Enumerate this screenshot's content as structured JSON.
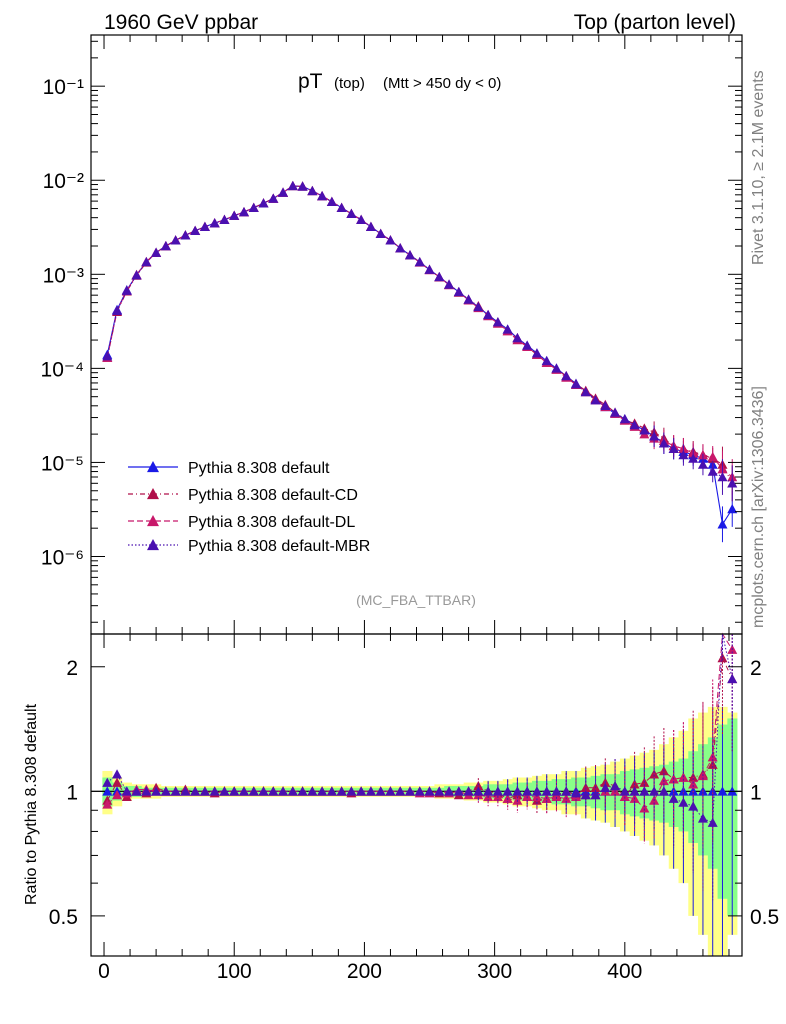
{
  "header": {
    "left": "1960 GeV ppbar",
    "right": "Top (parton level)"
  },
  "side_labels": {
    "rivet": "Rivet 3.1.10, ≥ 2.1M events",
    "mcplots": "mcplots.cern.ch [arXiv:1306.3436]"
  },
  "main_title": {
    "main": "pT",
    "sub1": "(top)",
    "sub2": "(Mtt > 450 dy < 0)"
  },
  "analysis_tag": "(MC_FBA_TTBAR)",
  "ratio_ylabel": "Ratio to Pythia 8.308 default",
  "colors": {
    "default": "#1a1ae6",
    "cd": "#b0104a",
    "dl": "#c8186a",
    "mbr": "#4a10b0",
    "band_yellow": "#ffff88",
    "band_green": "#88ff88"
  },
  "chart_data": [
    {
      "type": "line",
      "yscale": "log",
      "xlim": [
        -10,
        490
      ],
      "ylim": [
        1.5e-07,
        0.35
      ],
      "y_ticks": [
        {
          "v": 0.1,
          "label": "10⁻¹"
        },
        {
          "v": 0.01,
          "label": "10⁻²"
        },
        {
          "v": 0.001,
          "label": "10⁻³"
        },
        {
          "v": 0.0001,
          "label": "10⁻⁴"
        },
        {
          "v": 1e-05,
          "label": "10⁻⁵"
        },
        {
          "v": 1e-06,
          "label": "10⁻⁶"
        }
      ],
      "legend_position": "bottom-left",
      "x": [
        2.5,
        10,
        17.5,
        25,
        32.5,
        40,
        47.5,
        55,
        62.5,
        70,
        77.5,
        85,
        92.5,
        100,
        107.5,
        115,
        122.5,
        130,
        137.5,
        145,
        152.5,
        160,
        167.5,
        175,
        182.5,
        190,
        197.5,
        205,
        212.5,
        220,
        227.5,
        235,
        242.5,
        250,
        257.5,
        265,
        272.5,
        280,
        287.5,
        295,
        302.5,
        310,
        317.5,
        325,
        332.5,
        340,
        347.5,
        355,
        362.5,
        370,
        377.5,
        385,
        392.5,
        400,
        407.5,
        415,
        422.5,
        430,
        437.5,
        445,
        452.5,
        460,
        467.5,
        475,
        482.5
      ],
      "series": [
        {
          "name": "Pythia 8.308 default",
          "color_key": "default",
          "values": [
            0.00014,
            0.00042,
            0.00068,
            0.00098,
            0.00135,
            0.0017,
            0.002,
            0.0023,
            0.0026,
            0.0029,
            0.0032,
            0.0035,
            0.0038,
            0.0042,
            0.0046,
            0.0051,
            0.0057,
            0.0064,
            0.0074,
            0.0087,
            0.0086,
            0.0077,
            0.0068,
            0.0059,
            0.0051,
            0.0044,
            0.0038,
            0.0032,
            0.0027,
            0.0023,
            0.0019,
            0.0016,
            0.00135,
            0.00112,
            0.00094,
            0.00078,
            0.00065,
            0.00054,
            0.00045,
            0.00037,
            0.00031,
            0.00026,
            0.00021,
            0.000175,
            0.000145,
            0.00012,
            0.0001,
            8.3e-05,
            6.9e-05,
            5.7e-05,
            4.7e-05,
            3.9e-05,
            3.3e-05,
            2.9e-05,
            2.5e-05,
            2.2e-05,
            1.9e-05,
            1.6e-05,
            1.4e-05,
            1.3e-05,
            1.2e-05,
            1.1e-05,
            9.5e-06,
            2.2e-06,
            3.2e-06
          ]
        },
        {
          "name": "Pythia 8.308 default-CD",
          "color_key": "cd",
          "values": [
            0.00013,
            0.0004,
            0.00066,
            0.00097,
            0.00134,
            0.0017,
            0.002,
            0.0023,
            0.0026,
            0.0029,
            0.0032,
            0.0035,
            0.0038,
            0.0042,
            0.0046,
            0.0051,
            0.0057,
            0.0064,
            0.0074,
            0.0087,
            0.0086,
            0.0077,
            0.0068,
            0.0059,
            0.0051,
            0.0044,
            0.0038,
            0.0032,
            0.0027,
            0.0023,
            0.0019,
            0.0016,
            0.00135,
            0.00112,
            0.00093,
            0.00078,
            0.00064,
            0.00054,
            0.00046,
            0.00037,
            0.00031,
            0.00025,
            0.00021,
            0.00017,
            0.00014,
            0.000115,
            9.8e-05,
            8.3e-05,
            6.8e-05,
            5.8e-05,
            4.8e-05,
            4.1e-05,
            3.4e-05,
            2.8e-05,
            2.6e-05,
            2.3e-05,
            2.1e-05,
            1.8e-05,
            1.5e-05,
            1.4e-05,
            1.3e-05,
            1.2e-05,
            1.1e-05,
            9.5e-06,
            6e-06
          ]
        },
        {
          "name": "Pythia 8.308 default-DL",
          "color_key": "dl",
          "values": [
            0.00013,
            0.00041,
            0.00067,
            0.00099,
            0.00136,
            0.0017,
            0.002,
            0.0023,
            0.0026,
            0.0029,
            0.0032,
            0.0035,
            0.0038,
            0.0042,
            0.0046,
            0.0051,
            0.0057,
            0.0064,
            0.0074,
            0.0087,
            0.0086,
            0.0077,
            0.0068,
            0.0059,
            0.0051,
            0.0044,
            0.0038,
            0.0032,
            0.0027,
            0.0023,
            0.0019,
            0.0016,
            0.00134,
            0.00111,
            0.00094,
            0.00077,
            0.00065,
            0.00053,
            0.00044,
            0.00036,
            0.0003,
            0.00025,
            0.0002,
            0.00017,
            0.00014,
            0.000115,
            9.7e-05,
            8e-05,
            6.7e-05,
            5.6e-05,
            4.6e-05,
            3.9e-05,
            3.3e-05,
            2.8e-05,
            2.4e-05,
            2e-05,
            1.8e-05,
            1.7e-05,
            1.5e-05,
            1.4e-05,
            1.25e-05,
            1.2e-05,
            1.15e-05,
            8.5e-06,
            7e-06
          ]
        },
        {
          "name": "Pythia 8.308 default-MBR",
          "color_key": "mbr",
          "values": [
            0.000135,
            0.00041,
            0.00067,
            0.00098,
            0.00135,
            0.0017,
            0.002,
            0.0023,
            0.0026,
            0.0029,
            0.0032,
            0.0035,
            0.0038,
            0.0042,
            0.0046,
            0.0051,
            0.0057,
            0.0064,
            0.0074,
            0.0087,
            0.0086,
            0.0077,
            0.0068,
            0.0059,
            0.0051,
            0.0044,
            0.0038,
            0.0032,
            0.0027,
            0.0023,
            0.0019,
            0.0016,
            0.00135,
            0.00112,
            0.00094,
            0.00078,
            0.00065,
            0.00054,
            0.00045,
            0.00037,
            0.00031,
            0.00026,
            0.00021,
            0.000175,
            0.000145,
            0.00012,
            0.0001,
            8.3e-05,
            6.8e-05,
            5.6e-05,
            4.6e-05,
            4e-05,
            3.4e-05,
            2.9e-05,
            2.5e-05,
            2.2e-05,
            1.9e-05,
            1.6e-05,
            1.4e-05,
            1.2e-05,
            1.1e-05,
            9.5e-06,
            8e-06,
            7e-06,
            6e-06
          ]
        }
      ]
    },
    {
      "type": "line",
      "yscale": "log",
      "xlim": [
        -10,
        490
      ],
      "ylim": [
        0.4,
        2.4
      ],
      "x_ticks": [
        0,
        100,
        200,
        300,
        400
      ],
      "y_ticks": [
        0.5,
        1,
        2
      ],
      "reference_line": 1,
      "band_yellow_halfwidth": [
        0.12,
        0.08,
        0.05,
        0.04,
        0.04,
        0.04,
        0.03,
        0.03,
        0.03,
        0.03,
        0.03,
        0.03,
        0.03,
        0.03,
        0.03,
        0.03,
        0.03,
        0.03,
        0.03,
        0.03,
        0.03,
        0.03,
        0.03,
        0.03,
        0.03,
        0.03,
        0.03,
        0.03,
        0.03,
        0.03,
        0.03,
        0.03,
        0.03,
        0.03,
        0.04,
        0.04,
        0.04,
        0.05,
        0.05,
        0.06,
        0.06,
        0.07,
        0.08,
        0.08,
        0.09,
        0.1,
        0.1,
        0.12,
        0.12,
        0.14,
        0.15,
        0.16,
        0.18,
        0.2,
        0.22,
        0.24,
        0.26,
        0.3,
        0.35,
        0.4,
        0.5,
        0.55,
        0.6,
        0.6,
        0.55
      ],
      "band_green_halfwidth": [
        0.08,
        0.05,
        0.03,
        0.03,
        0.02,
        0.02,
        0.02,
        0.02,
        0.02,
        0.02,
        0.02,
        0.02,
        0.02,
        0.02,
        0.02,
        0.02,
        0.02,
        0.02,
        0.02,
        0.02,
        0.02,
        0.02,
        0.02,
        0.02,
        0.02,
        0.02,
        0.02,
        0.02,
        0.02,
        0.02,
        0.02,
        0.02,
        0.02,
        0.02,
        0.02,
        0.03,
        0.03,
        0.03,
        0.03,
        0.04,
        0.04,
        0.04,
        0.05,
        0.05,
        0.06,
        0.06,
        0.07,
        0.07,
        0.08,
        0.08,
        0.09,
        0.1,
        0.1,
        0.12,
        0.13,
        0.14,
        0.15,
        0.16,
        0.18,
        0.2,
        0.25,
        0.3,
        0.35,
        0.45,
        0.5
      ],
      "series": [
        {
          "name": "Pythia 8.308 default",
          "color_key": "default",
          "values": [
            1,
            1,
            1,
            1,
            1,
            1,
            1,
            1,
            1,
            1,
            1,
            1,
            1,
            1,
            1,
            1,
            1,
            1,
            1,
            1,
            1,
            1,
            1,
            1,
            1,
            1,
            1,
            1,
            1,
            1,
            1,
            1,
            1,
            1,
            1,
            1,
            1,
            1,
            1,
            1,
            1,
            1,
            1,
            1,
            1,
            1,
            1,
            1,
            1,
            1,
            1,
            1,
            1,
            1,
            1,
            1,
            1,
            1,
            1,
            1,
            1,
            1,
            1,
            1,
            1
          ]
        },
        {
          "name": "Pythia 8.308 default-CD",
          "color_key": "cd",
          "values": [
            0.95,
            1.05,
            0.97,
            1.0,
            0.99,
            1.02,
            1.0,
            1.0,
            1.01,
            1.0,
            1.0,
            0.99,
            1.0,
            1.0,
            1.0,
            1.0,
            1.0,
            1.0,
            1.0,
            1.0,
            1.0,
            1.0,
            1.0,
            1.0,
            1.0,
            0.99,
            1.0,
            1.0,
            1.0,
            1.0,
            1.0,
            1.0,
            1.0,
            1.0,
            0.99,
            1.0,
            0.98,
            1.0,
            1.03,
            1.0,
            0.99,
            0.96,
            0.98,
            0.97,
            0.95,
            0.96,
            0.98,
            1.0,
            0.98,
            1.02,
            1.02,
            1.05,
            1.03,
            0.97,
            1.04,
            1.05,
            1.1,
            1.12,
            1.07,
            1.08,
            1.08,
            1.1,
            1.16,
            2.1,
            1.87
          ]
        },
        {
          "name": "Pythia 8.308 default-DL",
          "color_key": "dl",
          "values": [
            0.93,
            0.98,
            0.99,
            1.01,
            1.01,
            1.0,
            1.0,
            1.0,
            1.0,
            1.0,
            1.0,
            1.0,
            1.0,
            1.0,
            1.0,
            1.0,
            1.0,
            1.0,
            1.0,
            1.0,
            1.0,
            1.0,
            1.0,
            1.0,
            1.0,
            1.0,
            1.0,
            1.0,
            1.0,
            1.0,
            1.0,
            1.0,
            0.99,
            0.99,
            1.0,
            0.99,
            1.0,
            0.98,
            0.98,
            0.97,
            0.97,
            0.96,
            0.95,
            0.97,
            0.97,
            0.96,
            0.97,
            0.96,
            0.97,
            0.98,
            0.98,
            1.0,
            1.0,
            0.97,
            0.96,
            0.91,
            0.95,
            1.06,
            1.07,
            1.08,
            1.04,
            1.09,
            1.21,
            3.9,
            2.2
          ]
        },
        {
          "name": "Pythia 8.308 default-MBR",
          "color_key": "mbr",
          "values": [
            1.05,
            1.1,
            1.0,
            1.0,
            1.0,
            1.0,
            1.0,
            1.0,
            1.0,
            1.0,
            1.0,
            1.0,
            1.0,
            1.0,
            1.0,
            1.0,
            1.0,
            1.0,
            1.0,
            1.0,
            1.0,
            1.0,
            1.0,
            1.0,
            1.0,
            1.0,
            1.0,
            1.0,
            1.0,
            1.0,
            1.0,
            1.0,
            1.0,
            1.0,
            1.0,
            1.0,
            1.0,
            1.0,
            1.0,
            1.0,
            1.0,
            1.0,
            1.0,
            1.0,
            1.0,
            1.0,
            1.0,
            1.0,
            0.99,
            0.98,
            0.98,
            1.02,
            1.03,
            1.0,
            1.0,
            1.0,
            1.0,
            1.0,
            0.96,
            0.94,
            0.92,
            0.86,
            0.84,
            3.17,
            1.87
          ]
        }
      ]
    }
  ]
}
